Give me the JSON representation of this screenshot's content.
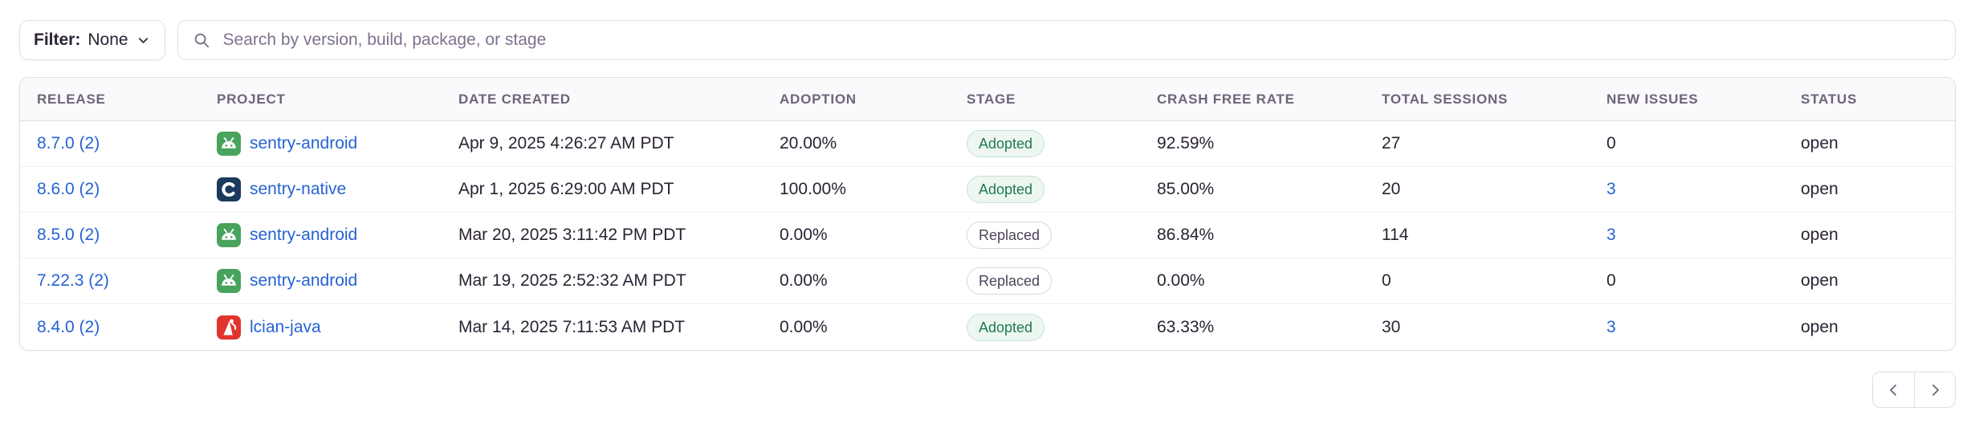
{
  "toolbar": {
    "filter_label": "Filter:",
    "filter_value": "None",
    "filter_chevron_icon": "chevron-down-icon",
    "search_icon": "magnifier-icon",
    "search_placeholder": "Search by version, build, package, or stage"
  },
  "table": {
    "columns": [
      "Release",
      "Project",
      "Date Created",
      "Adoption",
      "Stage",
      "Crash Free Rate",
      "Total Sessions",
      "New Issues",
      "Status"
    ],
    "rows": [
      {
        "release": "8.7.0 (2)",
        "project": "sentry-android",
        "platform_icon": "android-icon",
        "date_created": "Apr 9, 2025 4:26:27 AM PDT",
        "adoption": "20.00%",
        "stage": "Adopted",
        "crash_free_rate": "92.59%",
        "total_sessions": "27",
        "new_issues": "0",
        "new_issues_link": false,
        "status": "open"
      },
      {
        "release": "8.6.0 (2)",
        "project": "sentry-native",
        "platform_icon": "c-icon",
        "date_created": "Apr 1, 2025 6:29:00 AM PDT",
        "adoption": "100.00%",
        "stage": "Adopted",
        "crash_free_rate": "85.00%",
        "total_sessions": "20",
        "new_issues": "3",
        "new_issues_link": true,
        "status": "open"
      },
      {
        "release": "8.5.0 (2)",
        "project": "sentry-android",
        "platform_icon": "android-icon",
        "date_created": "Mar 20, 2025 3:11:42 PM PDT",
        "adoption": "0.00%",
        "stage": "Replaced",
        "crash_free_rate": "86.84%",
        "total_sessions": "114",
        "new_issues": "3",
        "new_issues_link": true,
        "status": "open"
      },
      {
        "release": "7.22.3 (2)",
        "project": "sentry-android",
        "platform_icon": "android-icon",
        "date_created": "Mar 19, 2025 2:52:32 AM PDT",
        "adoption": "0.00%",
        "stage": "Replaced",
        "crash_free_rate": "0.00%",
        "total_sessions": "0",
        "new_issues": "0",
        "new_issues_link": false,
        "status": "open"
      },
      {
        "release": "8.4.0 (2)",
        "project": "lcian-java",
        "platform_icon": "java-icon",
        "date_created": "Mar 14, 2025 7:11:53 AM PDT",
        "adoption": "0.00%",
        "stage": "Adopted",
        "crash_free_rate": "63.33%",
        "total_sessions": "30",
        "new_issues": "3",
        "new_issues_link": true,
        "status": "open"
      }
    ]
  },
  "pagination": {
    "previous_icon": "chevron-left-icon",
    "next_icon": "chevron-right-icon"
  },
  "colors": {
    "text": "#2b2233",
    "muted": "#6e6479",
    "link": "#2562d4",
    "border": "#e0dce5",
    "row-border": "#f0eef2",
    "header-bg": "#faf9fb",
    "placeholder": "#80708f",
    "badge-adopted-bg": "#edf6f0",
    "badge-adopted-border": "#c6e3d2",
    "badge-adopted-text": "#207a52",
    "badge-replaced-bg": "#ffffff",
    "badge-replaced-border": "#d8d3de",
    "badge-replaced-text": "#4d4458",
    "icon-android": "#48a35c",
    "icon-c": "#1a3a5e",
    "icon-java": "#e2342e"
  }
}
